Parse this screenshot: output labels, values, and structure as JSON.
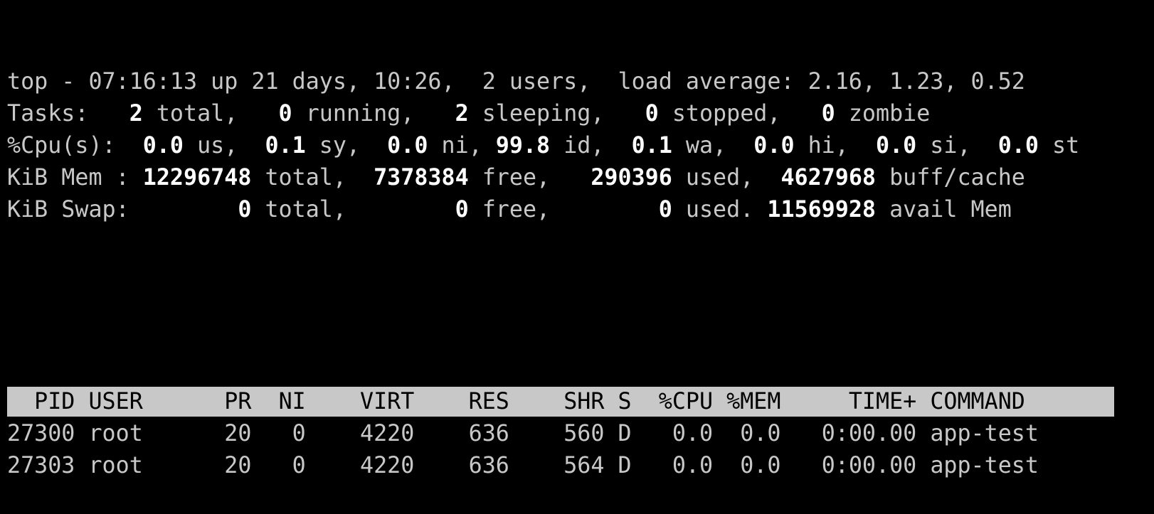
{
  "summary": [
    [
      {
        "t": "top - 07:16:13 up 21 days, 10:26,  2 users,  load average: 2.16, 1.23, 0.52",
        "b": false
      }
    ],
    [
      {
        "t": "Tasks:",
        "b": false
      },
      {
        "t": "   2",
        "b": true
      },
      {
        "t": " total,",
        "b": false
      },
      {
        "t": "   0",
        "b": true
      },
      {
        "t": " running,",
        "b": false
      },
      {
        "t": "   2",
        "b": true
      },
      {
        "t": " sleeping,",
        "b": false
      },
      {
        "t": "   0",
        "b": true
      },
      {
        "t": " stopped,",
        "b": false
      },
      {
        "t": "   0",
        "b": true
      },
      {
        "t": " zombie",
        "b": false
      }
    ],
    [
      {
        "t": "%Cpu(s):",
        "b": false
      },
      {
        "t": "  0.0",
        "b": true
      },
      {
        "t": " us,",
        "b": false
      },
      {
        "t": "  0.1",
        "b": true
      },
      {
        "t": " sy,",
        "b": false
      },
      {
        "t": "  0.0",
        "b": true
      },
      {
        "t": " ni,",
        "b": false
      },
      {
        "t": " 99.8",
        "b": true
      },
      {
        "t": " id,",
        "b": false
      },
      {
        "t": "  0.1",
        "b": true
      },
      {
        "t": " wa,",
        "b": false
      },
      {
        "t": "  0.0",
        "b": true
      },
      {
        "t": " hi,",
        "b": false
      },
      {
        "t": "  0.0",
        "b": true
      },
      {
        "t": " si,",
        "b": false
      },
      {
        "t": "  0.0",
        "b": true
      },
      {
        "t": " st",
        "b": false
      }
    ],
    [
      {
        "t": "KiB Mem :",
        "b": false
      },
      {
        "t": " 12296748",
        "b": true
      },
      {
        "t": " total,",
        "b": false
      },
      {
        "t": "  7378384",
        "b": true
      },
      {
        "t": " free,",
        "b": false
      },
      {
        "t": "   290396",
        "b": true
      },
      {
        "t": " used,",
        "b": false
      },
      {
        "t": "  4627968",
        "b": true
      },
      {
        "t": " buff/cache",
        "b": false
      }
    ],
    [
      {
        "t": "KiB Swap:",
        "b": false
      },
      {
        "t": "        0",
        "b": true
      },
      {
        "t": " total,",
        "b": false
      },
      {
        "t": "        0",
        "b": true
      },
      {
        "t": " free,",
        "b": false
      },
      {
        "t": "        0",
        "b": true
      },
      {
        "t": " used.",
        "b": false
      },
      {
        "t": " 11569928",
        "b": true
      },
      {
        "t": " avail Mem",
        "b": false
      }
    ]
  ],
  "table": {
    "columns": [
      "PID",
      "USER",
      "PR",
      "NI",
      "VIRT",
      "RES",
      "SHR",
      "S",
      "%CPU",
      "%MEM",
      "TIME+",
      "COMMAND"
    ],
    "rows": [
      [
        "27300",
        "root",
        "20",
        "0",
        "4220",
        "636",
        "560",
        "D",
        "0.0",
        "0.0",
        "0:00.00",
        "app-test"
      ],
      [
        "27303",
        "root",
        "20",
        "0",
        "4220",
        "636",
        "564",
        "D",
        "0.0",
        "0.0",
        "0:00.00",
        "app-test"
      ]
    ]
  },
  "colors": {
    "background": "#000000",
    "text": "#c8c8c8",
    "highlight": "#ffffff",
    "header_bar": "#c8c8c8"
  }
}
